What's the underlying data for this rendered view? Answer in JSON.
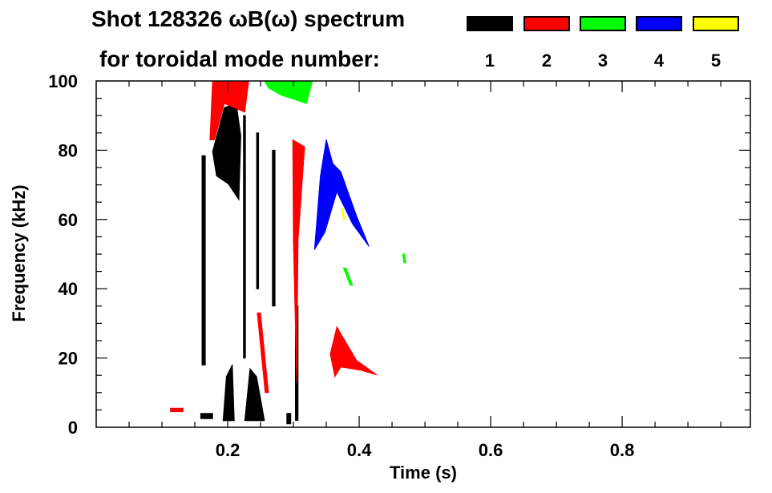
{
  "chart_data": {
    "type": "heatmap",
    "title_line1": "Shot 128326 ωB(ω) spectrum",
    "title_line2": "for toroidal mode number:",
    "xlabel": "Time (s)",
    "ylabel": "Frequency (kHz)",
    "xlim": [
      0,
      0.995
    ],
    "ylim": [
      0,
      100
    ],
    "xticks": [
      0.2,
      0.4,
      0.6,
      0.8
    ],
    "xtick_labels": [
      "0.2",
      "0.4",
      "0.6",
      "0.8"
    ],
    "yticks": [
      0,
      20,
      40,
      60,
      80,
      100
    ],
    "ytick_labels": [
      "0",
      "20",
      "40",
      "60",
      "80",
      "100"
    ],
    "x_minor_step": 0.05,
    "y_minor_step": 5,
    "legend": [
      {
        "label": "1",
        "color": "#000000"
      },
      {
        "label": "2",
        "color": "#ff0000"
      },
      {
        "label": "3",
        "color": "#00ff00"
      },
      {
        "label": "4",
        "color": "#0000ff"
      },
      {
        "label": "5",
        "color": "#ffff00"
      }
    ],
    "regions": [
      {
        "mode": 1,
        "points": [
          [
            0.177,
            79.6
          ],
          [
            0.195,
            92.3
          ],
          [
            0.213,
            93.5
          ],
          [
            0.22,
            84.2
          ],
          [
            0.217,
            65.7
          ],
          [
            0.201,
            70.3
          ],
          [
            0.183,
            72.6
          ]
        ]
      },
      {
        "mode": 1,
        "points": [
          [
            0.193,
            1.9
          ],
          [
            0.198,
            14.6
          ],
          [
            0.207,
            18.1
          ],
          [
            0.21,
            1.9
          ]
        ]
      },
      {
        "mode": 1,
        "points": [
          [
            0.226,
            1.9
          ],
          [
            0.234,
            16.9
          ],
          [
            0.244,
            14.6
          ],
          [
            0.256,
            1.9
          ]
        ]
      },
      {
        "mode": 1,
        "points": [
          [
            0.161,
            78.4
          ],
          [
            0.166,
            78.4
          ],
          [
            0.166,
            18
          ],
          [
            0.161,
            18
          ]
        ]
      },
      {
        "mode": 1,
        "points": [
          [
            0.224,
            90
          ],
          [
            0.227,
            90
          ],
          [
            0.227,
            20
          ],
          [
            0.224,
            20
          ]
        ]
      },
      {
        "mode": 1,
        "points": [
          [
            0.244,
            85
          ],
          [
            0.247,
            85
          ],
          [
            0.247,
            40
          ],
          [
            0.244,
            40
          ]
        ]
      },
      {
        "mode": 1,
        "points": [
          [
            0.268,
            80
          ],
          [
            0.272,
            80
          ],
          [
            0.272,
            35
          ],
          [
            0.268,
            35
          ]
        ]
      },
      {
        "mode": 1,
        "points": [
          [
            0.303,
            35
          ],
          [
            0.307,
            35
          ],
          [
            0.307,
            2
          ],
          [
            0.303,
            2
          ]
        ]
      },
      {
        "mode": 1,
        "points": [
          [
            0.159,
            4
          ],
          [
            0.177,
            4
          ],
          [
            0.177,
            2.5
          ],
          [
            0.159,
            2.5
          ]
        ]
      },
      {
        "mode": 1,
        "points": [
          [
            0.29,
            4
          ],
          [
            0.296,
            4
          ],
          [
            0.296,
            1
          ],
          [
            0.29,
            1
          ]
        ]
      },
      {
        "mode": 2,
        "points": [
          [
            0.173,
            83
          ],
          [
            0.177,
            100
          ],
          [
            0.232,
            100
          ],
          [
            0.226,
            91
          ],
          [
            0.195,
            93.5
          ],
          [
            0.18,
            83
          ]
        ]
      },
      {
        "mode": 2,
        "points": [
          [
            0.299,
            83
          ],
          [
            0.317,
            81
          ],
          [
            0.307,
            54
          ],
          [
            0.305,
            13
          ],
          [
            0.3,
            54
          ]
        ]
      },
      {
        "mode": 2,
        "points": [
          [
            0.113,
            5.5
          ],
          [
            0.132,
            5.5
          ],
          [
            0.132,
            4.5
          ],
          [
            0.113,
            4.5
          ]
        ]
      },
      {
        "mode": 2,
        "points": [
          [
            0.245,
            33
          ],
          [
            0.25,
            33
          ],
          [
            0.262,
            10
          ],
          [
            0.257,
            10
          ]
        ]
      },
      {
        "mode": 2,
        "points": [
          [
            0.356,
            21.1
          ],
          [
            0.366,
            29.0
          ],
          [
            0.378,
            25.1
          ],
          [
            0.396,
            19.3
          ],
          [
            0.427,
            15.1
          ],
          [
            0.402,
            16.5
          ],
          [
            0.372,
            17.4
          ],
          [
            0.363,
            14.6
          ]
        ]
      },
      {
        "mode": 3,
        "points": [
          [
            0.256,
            100
          ],
          [
            0.329,
            100
          ],
          [
            0.32,
            93.5
          ],
          [
            0.28,
            96
          ],
          [
            0.262,
            98
          ]
        ]
      },
      {
        "mode": 3,
        "points": [
          [
            0.376,
            46
          ],
          [
            0.38,
            46
          ],
          [
            0.39,
            41
          ],
          [
            0.386,
            41
          ]
        ]
      },
      {
        "mode": 3,
        "points": [
          [
            0.466,
            50
          ],
          [
            0.469,
            50
          ],
          [
            0.471,
            47.5
          ],
          [
            0.468,
            47.5
          ]
        ]
      },
      {
        "mode": 4,
        "points": [
          [
            0.332,
            51.3
          ],
          [
            0.341,
            72.6
          ],
          [
            0.35,
            83.1
          ],
          [
            0.36,
            76.1
          ],
          [
            0.372,
            73.8
          ],
          [
            0.396,
            61.0
          ],
          [
            0.415,
            52.2
          ],
          [
            0.39,
            58.7
          ],
          [
            0.366,
            68.0
          ],
          [
            0.348,
            56.4
          ]
        ]
      },
      {
        "mode": 5,
        "points": [
          [
            0.373,
            63
          ],
          [
            0.375,
            63
          ],
          [
            0.378,
            60
          ],
          [
            0.376,
            60
          ]
        ]
      }
    ]
  }
}
